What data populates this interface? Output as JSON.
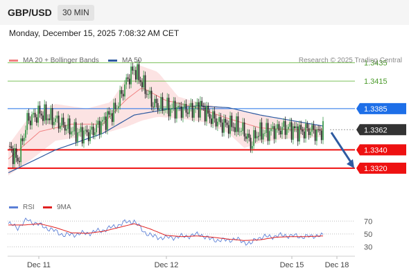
{
  "header": {
    "pair": "GBP/USD",
    "timeframe": "30 MIN"
  },
  "timestamp": "Monday, December 15, 2025 7:08:32 AM CET",
  "legend": {
    "ma20": {
      "label": "MA 20 + Bollinger Bands",
      "color": "#f08080"
    },
    "ma50": {
      "label": "MA 50",
      "color": "#2e5aa0"
    },
    "copyright": "Research © 2025 Trading Central"
  },
  "rsi_legend": {
    "rsi": {
      "label": "RSI",
      "color": "#5b7fd6"
    },
    "ma9": {
      "label": "9MA",
      "color": "#e02020"
    }
  },
  "chart_data": [
    {
      "type": "candlestick",
      "title": "GBP/USD 30 MIN",
      "ylim": [
        1.3292,
        1.3443
      ],
      "x_ticks": [
        "Dec 11",
        "Dec 12",
        "Dec 15",
        "Dec 18"
      ],
      "levels": [
        {
          "value": 1.3435,
          "label": "1.3435",
          "kind": "resistance",
          "color": "#7cc05a"
        },
        {
          "value": 1.3415,
          "label": "1.3415",
          "kind": "resistance",
          "color": "#7cc05a"
        },
        {
          "value": 1.3385,
          "label": "1.3385",
          "kind": "pivot",
          "color": "#1e6fe8"
        },
        {
          "value": 1.3362,
          "label": "1.3362",
          "kind": "last price",
          "color": "#333333"
        },
        {
          "value": 1.334,
          "label": "1.3340",
          "kind": "support",
          "color": "#ee1111"
        },
        {
          "value": 1.332,
          "label": "1.3320",
          "kind": "support",
          "color": "#ee1111"
        }
      ],
      "close_path": [
        [
          0,
          1.3344
        ],
        [
          6,
          1.3328
        ],
        [
          12,
          1.3372
        ],
        [
          20,
          1.338
        ],
        [
          28,
          1.3374
        ],
        [
          36,
          1.3366
        ],
        [
          44,
          1.3358
        ],
        [
          52,
          1.3358
        ],
        [
          60,
          1.337
        ],
        [
          68,
          1.3384
        ],
        [
          76,
          1.3418
        ],
        [
          80,
          1.3428
        ],
        [
          86,
          1.341
        ],
        [
          92,
          1.339
        ],
        [
          100,
          1.3386
        ],
        [
          110,
          1.3384
        ],
        [
          118,
          1.3384
        ],
        [
          122,
          1.3388
        ],
        [
          128,
          1.3376
        ],
        [
          136,
          1.3368
        ],
        [
          144,
          1.3366
        ],
        [
          150,
          1.336
        ],
        [
          154,
          1.3346
        ],
        [
          158,
          1.3358
        ],
        [
          166,
          1.336
        ],
        [
          176,
          1.3364
        ],
        [
          186,
          1.336
        ],
        [
          192,
          1.3362
        ],
        [
          196,
          1.3358
        ],
        [
          200,
          1.3362
        ]
      ],
      "ma20_path": [
        [
          0,
          1.333
        ],
        [
          20,
          1.336
        ],
        [
          40,
          1.3368
        ],
        [
          60,
          1.3368
        ],
        [
          75,
          1.3395
        ],
        [
          85,
          1.3408
        ],
        [
          100,
          1.3394
        ],
        [
          120,
          1.3386
        ],
        [
          140,
          1.3374
        ],
        [
          160,
          1.3364
        ],
        [
          180,
          1.3362
        ],
        [
          200,
          1.3362
        ]
      ],
      "bollinger_upper_path": [
        [
          0,
          1.3345
        ],
        [
          15,
          1.338
        ],
        [
          30,
          1.339
        ],
        [
          50,
          1.3385
        ],
        [
          65,
          1.3392
        ],
        [
          75,
          1.3418
        ],
        [
          82,
          1.3433
        ],
        [
          95,
          1.3425
        ],
        [
          108,
          1.3398
        ],
        [
          120,
          1.3392
        ],
        [
          135,
          1.3386
        ],
        [
          150,
          1.3382
        ],
        [
          170,
          1.3374
        ],
        [
          200,
          1.3366
        ]
      ],
      "bollinger_lower_path": [
        [
          0,
          1.3312
        ],
        [
          15,
          1.333
        ],
        [
          30,
          1.335
        ],
        [
          50,
          1.3355
        ],
        [
          65,
          1.336
        ],
        [
          75,
          1.3365
        ],
        [
          85,
          1.3372
        ],
        [
          95,
          1.3376
        ],
        [
          110,
          1.3374
        ],
        [
          125,
          1.337
        ],
        [
          140,
          1.3358
        ],
        [
          150,
          1.3342
        ],
        [
          160,
          1.3348
        ],
        [
          175,
          1.3352
        ],
        [
          200,
          1.3354
        ]
      ],
      "ma50_path": [
        [
          0,
          1.3315
        ],
        [
          30,
          1.334
        ],
        [
          60,
          1.3358
        ],
        [
          80,
          1.3378
        ],
        [
          100,
          1.3384
        ],
        [
          120,
          1.3388
        ],
        [
          140,
          1.3386
        ],
        [
          160,
          1.3378
        ],
        [
          180,
          1.3372
        ],
        [
          200,
          1.3366
        ]
      ],
      "forecast_arrow": {
        "from": 1.3362,
        "to": 1.332
      }
    },
    {
      "type": "line",
      "title": "RSI",
      "ylim": [
        22,
        80
      ],
      "y_ticks": [
        70,
        50,
        30
      ],
      "series": [
        {
          "name": "RSI",
          "color": "#5b7fd6",
          "path": [
            [
              0,
              66
            ],
            [
              6,
              60
            ],
            [
              12,
              72
            ],
            [
              20,
              64
            ],
            [
              28,
              56
            ],
            [
              36,
              48
            ],
            [
              44,
              50
            ],
            [
              52,
              52
            ],
            [
              60,
              56
            ],
            [
              68,
              62
            ],
            [
              74,
              68
            ],
            [
              80,
              70
            ],
            [
              86,
              54
            ],
            [
              92,
              46
            ],
            [
              100,
              44
            ],
            [
              110,
              46
            ],
            [
              118,
              48
            ],
            [
              122,
              50
            ],
            [
              128,
              42
            ],
            [
              136,
              40
            ],
            [
              144,
              42
            ],
            [
              150,
              38
            ],
            [
              154,
              34
            ],
            [
              158,
              44
            ],
            [
              166,
              46
            ],
            [
              176,
              48
            ],
            [
              186,
              46
            ],
            [
              192,
              46
            ],
            [
              196,
              48
            ],
            [
              200,
              47
            ]
          ]
        },
        {
          "name": "9MA",
          "color": "#e02020",
          "path": [
            [
              0,
              64
            ],
            [
              10,
              64
            ],
            [
              20,
              66
            ],
            [
              30,
              60
            ],
            [
              40,
              52
            ],
            [
              50,
              51
            ],
            [
              60,
              54
            ],
            [
              70,
              60
            ],
            [
              80,
              66
            ],
            [
              90,
              58
            ],
            [
              100,
              48
            ],
            [
              110,
              46
            ],
            [
              120,
              47
            ],
            [
              130,
              45
            ],
            [
              140,
              42
            ],
            [
              150,
              40
            ],
            [
              160,
              41
            ],
            [
              170,
              45
            ],
            [
              180,
              46
            ],
            [
              190,
              46
            ],
            [
              200,
              47
            ]
          ]
        }
      ]
    }
  ]
}
